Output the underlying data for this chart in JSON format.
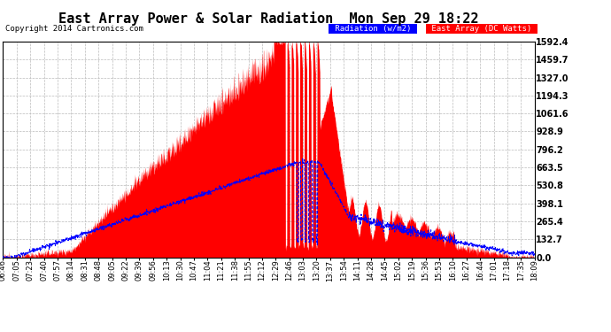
{
  "title": "East Array Power & Solar Radiation  Mon Sep 29 18:22",
  "copyright": "Copyright 2014 Cartronics.com",
  "legend_radiation": "Radiation (w/m2)",
  "legend_east_array": "East Array (DC Watts)",
  "right_yticks": [
    0.0,
    132.7,
    265.4,
    398.1,
    530.8,
    663.5,
    796.2,
    928.9,
    1061.6,
    1194.3,
    1327.0,
    1459.7,
    1592.4
  ],
  "background_color": "#ffffff",
  "plot_bg_color": "#ffffff",
  "grid_color": "#bbbbbb",
  "fill_color": "#ff0000",
  "line_color": "#0000ff",
  "title_fontsize": 11,
  "copyright_fontsize": 6.5,
  "tick_fontsize": 6,
  "ytick_fontsize": 7,
  "ymax": 1592.4,
  "ymin": 0.0,
  "x_labels": [
    "06:46",
    "07:05",
    "07:23",
    "07:40",
    "07:57",
    "08:14",
    "08:31",
    "08:48",
    "09:05",
    "09:22",
    "09:39",
    "09:56",
    "10:13",
    "10:30",
    "10:47",
    "11:04",
    "11:21",
    "11:38",
    "11:55",
    "12:12",
    "12:29",
    "12:46",
    "13:03",
    "13:20",
    "13:37",
    "13:54",
    "14:11",
    "14:28",
    "14:45",
    "15:02",
    "15:19",
    "15:36",
    "15:53",
    "16:10",
    "16:27",
    "16:44",
    "17:01",
    "17:18",
    "17:35",
    "18:09"
  ]
}
